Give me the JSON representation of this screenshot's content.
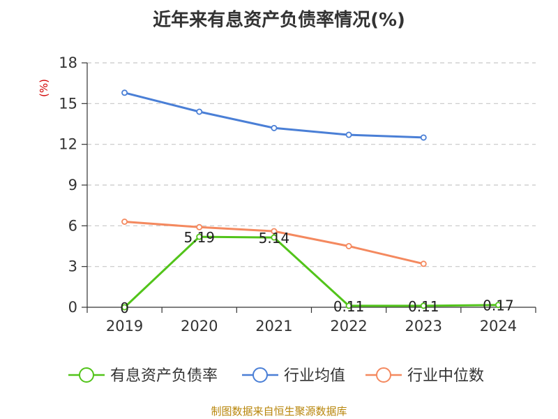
{
  "title": "近年来有息资产负债率情况(%)",
  "source": "制图数据来自恒生聚源数据库",
  "chart_data": {
    "type": "line",
    "title": "近年来有息资产负债率情况(%)",
    "ylabel": "(%)",
    "xlabel": "",
    "categories": [
      "2019",
      "2020",
      "2021",
      "2022",
      "2023",
      "2024"
    ],
    "ylim": [
      0,
      18
    ],
    "yticks": [
      0,
      3,
      6,
      9,
      12,
      15,
      18
    ],
    "grid": true,
    "legend_position": "bottom",
    "series": [
      {
        "name": "有息资产负债率",
        "color": "#52c41a",
        "values": [
          0,
          5.19,
          5.14,
          0.11,
          0.11,
          0.17
        ],
        "labels": [
          "0",
          "5.19",
          "5.14",
          "0.11",
          "0.11",
          "0.17"
        ]
      },
      {
        "name": "行业均值",
        "color": "#4a7fd6",
        "values": [
          15.8,
          14.4,
          13.2,
          12.7,
          12.5,
          null
        ]
      },
      {
        "name": "行业中位数",
        "color": "#f4895f",
        "values": [
          6.3,
          5.9,
          5.6,
          4.5,
          3.2,
          null
        ]
      }
    ]
  }
}
